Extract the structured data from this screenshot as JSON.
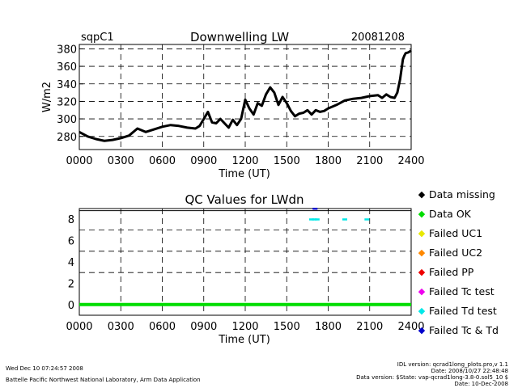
{
  "chart_data": [
    {
      "type": "line",
      "site_label": "sqpC1",
      "title": "Downwelling LW",
      "date_label": "20081208",
      "xlabel": "Time (UT)",
      "ylabel": "W/m2",
      "xlim": [
        0,
        2400
      ],
      "ylim": [
        265,
        385
      ],
      "x_ticks": [
        "0000",
        "0300",
        "0600",
        "0900",
        "1200",
        "1500",
        "1800",
        "2100",
        "2400"
      ],
      "x_tick_values": [
        0,
        300,
        600,
        900,
        1200,
        1500,
        1800,
        2100,
        2400
      ],
      "y_ticks": [
        280,
        300,
        320,
        340,
        360,
        380
      ],
      "grid": true,
      "series": [
        {
          "name": "Downwelling LW",
          "color": "#000000",
          "x": [
            0,
            60,
            120,
            180,
            240,
            300,
            360,
            420,
            480,
            540,
            600,
            660,
            720,
            780,
            840,
            870,
            900,
            930,
            960,
            990,
            1020,
            1080,
            1110,
            1140,
            1170,
            1200,
            1230,
            1260,
            1290,
            1320,
            1350,
            1380,
            1410,
            1440,
            1470,
            1500,
            1530,
            1560,
            1590,
            1620,
            1650,
            1680,
            1710,
            1740,
            1770,
            1800,
            1860,
            1920,
            1980,
            2040,
            2100,
            2160,
            2190,
            2220,
            2250,
            2280,
            2300,
            2320,
            2340,
            2350,
            2360,
            2380,
            2400
          ],
          "y": [
            285,
            280,
            277,
            275,
            276,
            278,
            281,
            289,
            285,
            288,
            291,
            293,
            292,
            290,
            289,
            292,
            300,
            308,
            296,
            295,
            300,
            290,
            299,
            293,
            300,
            322,
            312,
            305,
            318,
            315,
            328,
            336,
            330,
            316,
            325,
            318,
            309,
            303,
            306,
            307,
            310,
            305,
            310,
            308,
            309,
            312,
            316,
            321,
            323,
            324,
            326,
            327,
            324,
            328,
            325,
            324,
            330,
            345,
            368,
            372,
            375,
            376,
            378
          ]
        }
      ]
    },
    {
      "type": "scatter",
      "title": "QC Values for LWdn",
      "xlabel": "Time (UT)",
      "ylabel": "",
      "xlim": [
        0,
        2400
      ],
      "ylim": [
        -1,
        9
      ],
      "x_ticks": [
        "0000",
        "0300",
        "0600",
        "0900",
        "1200",
        "1500",
        "1800",
        "2100",
        "2400"
      ],
      "x_tick_values": [
        0,
        300,
        600,
        900,
        1200,
        1500,
        1800,
        2100,
        2400
      ],
      "y_ticks": [
        0,
        2,
        4,
        6,
        8
      ],
      "grid": true,
      "series": [
        {
          "name": "Data OK",
          "color": "#00dd00",
          "x": [
            0,
            2400
          ],
          "y": [
            0,
            0
          ],
          "style": "line"
        },
        {
          "name": "Failed Td test",
          "color": "#00e8e8",
          "x": [
            1680,
            1700,
            1720,
            1920,
            2080
          ],
          "y": [
            8,
            8,
            8,
            8,
            8
          ],
          "style": "points"
        },
        {
          "name": "Failed Tc & Td",
          "color": "#0000cc",
          "x": [
            1705
          ],
          "y": [
            9
          ],
          "style": "points"
        }
      ],
      "legend": [
        {
          "label": "Data missing",
          "color": "#000000"
        },
        {
          "label": "Data OK",
          "color": "#00dd00"
        },
        {
          "label": "Failed UC1",
          "color": "#e8e800"
        },
        {
          "label": "Failed UC2",
          "color": "#ff8800"
        },
        {
          "label": "Failed PP",
          "color": "#ee0000"
        },
        {
          "label": "Failed Tc test",
          "color": "#ee00ee"
        },
        {
          "label": "Failed Td test",
          "color": "#00e8e8"
        },
        {
          "label": "Failed Tc & Td",
          "color": "#0000cc"
        }
      ]
    }
  ],
  "footer": {
    "timestamp": "Wed Dec 10 07:24:57 2008",
    "lab": "Battelle Pacific Northwest National Laboratory, Arm Data Application",
    "idl_version": "IDL version: qcrad1long_plots.pro,v 1.1",
    "date_line": "Date: 2008/10/27 22:48:48",
    "data_version": "Data version: $State: vap-qcrad1long-3.8-0.sol5_10 $",
    "gen_date": "Date: 10-Dec-2008"
  }
}
